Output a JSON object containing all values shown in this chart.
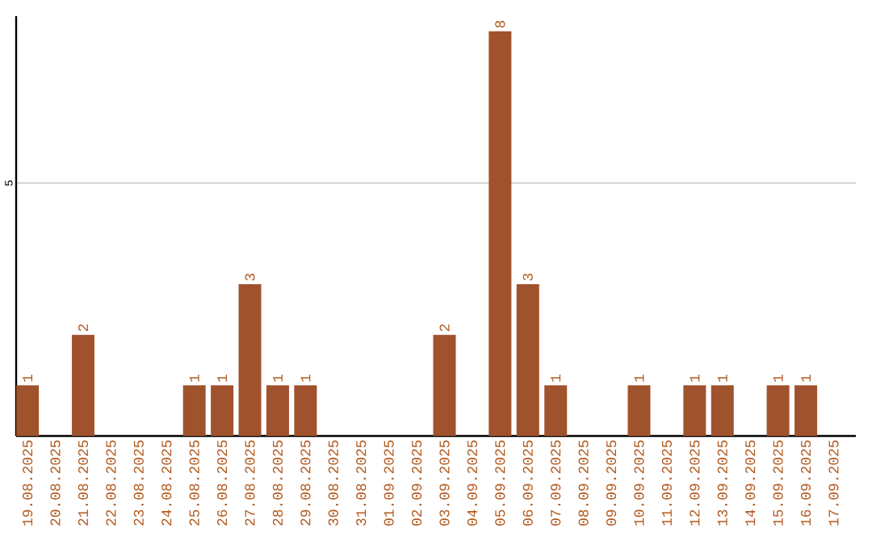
{
  "chart_data": {
    "type": "bar",
    "categories": [
      "19.08.2025",
      "20.08.2025",
      "21.08.2025",
      "22.08.2025",
      "23.08.2025",
      "24.08.2025",
      "25.08.2025",
      "26.08.2025",
      "27.08.2025",
      "28.08.2025",
      "29.08.2025",
      "30.08.2025",
      "31.08.2025",
      "01.09.2025",
      "02.09.2025",
      "03.09.2025",
      "04.09.2025",
      "05.09.2025",
      "06.09.2025",
      "07.09.2025",
      "08.09.2025",
      "09.09.2025",
      "10.09.2025",
      "11.09.2025",
      "12.09.2025",
      "13.09.2025",
      "14.09.2025",
      "15.09.2025",
      "16.09.2025",
      "17.09.2025"
    ],
    "values": [
      1,
      0,
      2,
      0,
      0,
      0,
      1,
      1,
      3,
      1,
      1,
      0,
      0,
      0,
      0,
      2,
      0,
      8,
      3,
      1,
      0,
      0,
      1,
      0,
      1,
      1,
      0,
      1,
      1,
      0
    ],
    "value_labels": [
      "1",
      null,
      "2",
      null,
      null,
      null,
      "1",
      "1",
      "3",
      "1",
      "1",
      null,
      null,
      null,
      null,
      "2",
      null,
      "8",
      "3",
      "1",
      null,
      null,
      "1",
      null,
      "1",
      "1",
      null,
      "1",
      "1",
      null
    ],
    "color": "#a0522d",
    "ylim": [
      0,
      8.3
    ],
    "yticks": [
      5
    ],
    "grid": "y"
  }
}
